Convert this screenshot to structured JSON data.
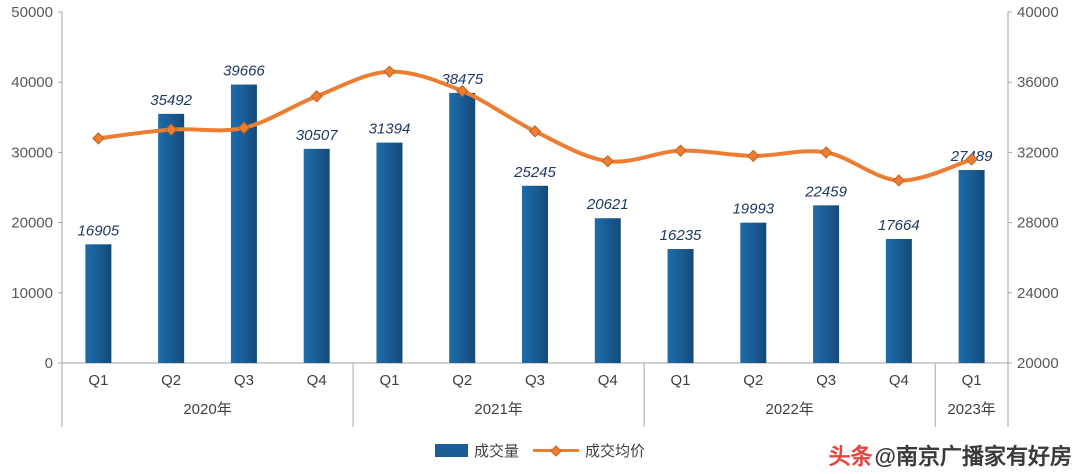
{
  "chart_data": {
    "type": "bar",
    "subtype": "bar-line-combo",
    "title": "",
    "categories": [
      "Q1",
      "Q2",
      "Q3",
      "Q4",
      "Q1",
      "Q2",
      "Q3",
      "Q4",
      "Q1",
      "Q2",
      "Q3",
      "Q4",
      "Q1"
    ],
    "year_groups": [
      {
        "label": "2020年",
        "count": 4
      },
      {
        "label": "2021年",
        "count": 4
      },
      {
        "label": "2022年",
        "count": 4
      },
      {
        "label": "2023年",
        "count": 1
      }
    ],
    "series": [
      {
        "name": "成交量",
        "type": "bar",
        "axis": "left",
        "color": "#1B5E97",
        "values": [
          16905,
          35492,
          39666,
          30507,
          31394,
          38475,
          25245,
          20621,
          16235,
          19993,
          22459,
          17664,
          27489
        ]
      },
      {
        "name": "成交均价",
        "type": "line",
        "axis": "right",
        "color": "#ED7D31",
        "marker": "diamond",
        "values": [
          32800,
          33300,
          33400,
          35200,
          36600,
          35500,
          33200,
          31500,
          32100,
          31800,
          32000,
          30400,
          31600
        ]
      }
    ],
    "left_axis": {
      "min": 0,
      "max": 50000,
      "ticks": [
        0,
        10000,
        20000,
        30000,
        40000,
        50000
      ]
    },
    "right_axis": {
      "min": 20000,
      "max": 40000,
      "ticks": [
        20000,
        24000,
        28000,
        32000,
        36000,
        40000
      ]
    },
    "grid": false,
    "legend_position": "bottom"
  },
  "watermark": {
    "logo": "头条",
    "account": "@南京广播家有好房"
  }
}
